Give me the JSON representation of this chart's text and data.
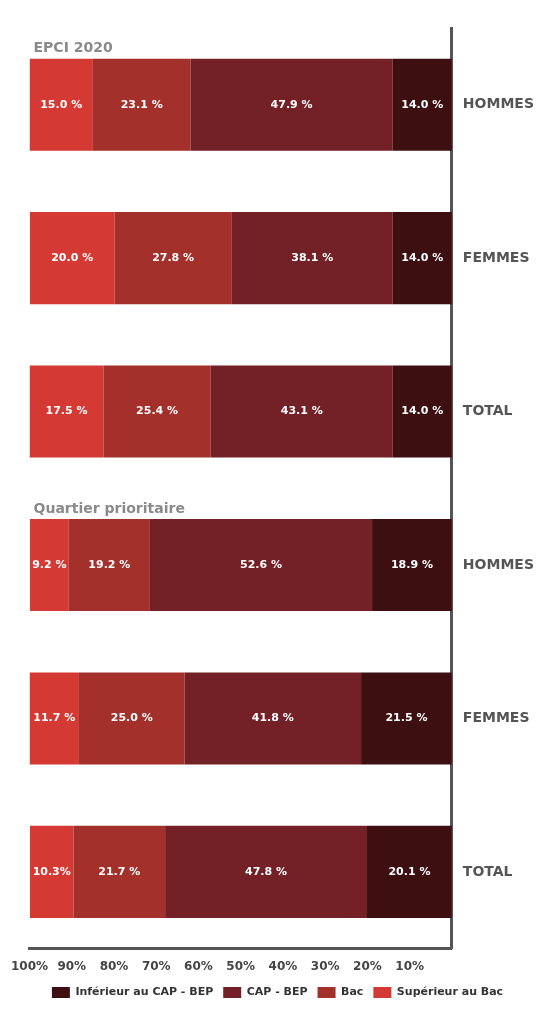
{
  "chart_data": {
    "type": "bar",
    "orientation": "horizontal",
    "stacked": true,
    "categories": [
      "HOMMES",
      "FEMMES",
      "TOTAL",
      "HOMMES",
      "FEMMES",
      "TOTAL"
    ],
    "series": [
      {
        "name": "Inférieur au CAP - BEP",
        "color": "#3d0f10",
        "values": [
          14.0,
          14.0,
          14.0,
          18.9,
          21.5,
          20.1
        ],
        "value_labels": [
          "14.0 %",
          "14.0 %",
          "14.0 %",
          "18.9 %",
          "21.5 %",
          "20.1 %"
        ]
      },
      {
        "name": "CAP - BEP",
        "color": "#732126",
        "values": [
          47.9,
          38.1,
          43.1,
          52.6,
          41.8,
          47.8
        ],
        "value_labels": [
          "47.9 %",
          "38.1 %",
          "43.1 %",
          "52.6 %",
          "41.8 %",
          "47.8 %"
        ]
      },
      {
        "name": "Bac",
        "color": "#a3302b",
        "values": [
          23.1,
          27.8,
          25.4,
          19.2,
          25.0,
          21.7
        ],
        "value_labels": [
          "23.1 %",
          "27.8 %",
          "25.4 %",
          "19.2 %",
          "25.0 %",
          "21.7 %"
        ]
      },
      {
        "name": "Supérieur au Bac",
        "color": "#d43a33",
        "values": [
          15.0,
          20.0,
          17.5,
          9.2,
          11.7,
          10.3
        ],
        "value_labels": [
          "15.0 %",
          "20.0 %",
          "17.5 %",
          "9.2 %",
          "11.7 %",
          "10.3%"
        ]
      }
    ],
    "xlim": [
      100,
      0
    ],
    "xticks": [
      {
        "value": 100,
        "label": "100%"
      },
      {
        "value": 90,
        "label": "90%"
      },
      {
        "value": 80,
        "label": "80%"
      },
      {
        "value": 70,
        "label": "70%"
      },
      {
        "value": 60,
        "label": "60%"
      },
      {
        "value": 50,
        "label": "50%"
      },
      {
        "value": 40,
        "label": "40%"
      },
      {
        "value": 30,
        "label": "30%"
      },
      {
        "value": 20,
        "label": "20%"
      },
      {
        "value": 10,
        "label": "10%"
      }
    ],
    "annotations": [
      "EPCI 2020",
      "Quartier prioritaire"
    ],
    "grid": false,
    "legend": "bottom"
  }
}
